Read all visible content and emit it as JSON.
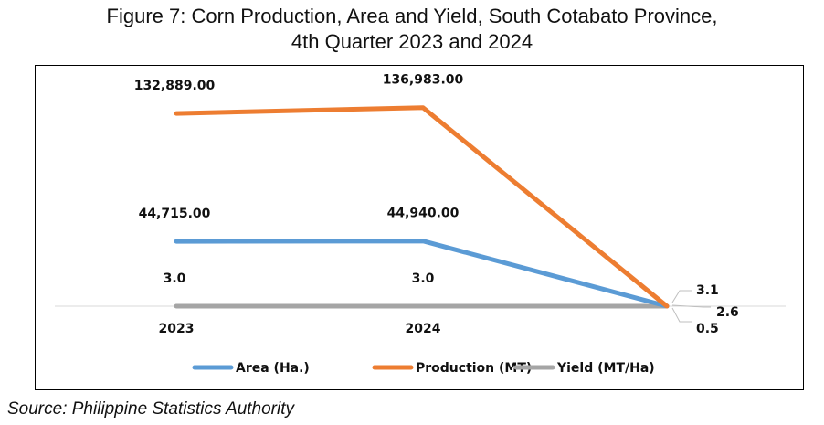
{
  "chart_data": {
    "type": "line",
    "title_line1": "Figure 7: Corn Production, Area and Yield, South Cotabato Province,",
    "title_line2": "4th Quarter 2023 and 2024",
    "categories": [
      "2023",
      "2024",
      ""
    ],
    "series": [
      {
        "name": "Area (Ha.)",
        "color": "#5B9BD5",
        "values": [
          44715.0,
          44940.0,
          0.5
        ],
        "labels": [
          "44,715.00",
          "44,940.00",
          "0.5"
        ]
      },
      {
        "name": "Production (MT)",
        "color": "#ED7D31",
        "values": [
          132889.0,
          136983.0,
          3.1
        ],
        "labels": [
          "132,889.00",
          "136,983.00",
          "3.1"
        ]
      },
      {
        "name": "Yield (MT/Ha)",
        "color": "#A5A5A5",
        "values": [
          3.0,
          3.0,
          2.6
        ],
        "labels": [
          "3.0",
          "3.0",
          "2.6"
        ]
      }
    ],
    "ylim": [
      0,
      150000
    ],
    "grid": false,
    "legend_position": "bottom"
  },
  "source": "Source: Philippine Statistics Authority"
}
